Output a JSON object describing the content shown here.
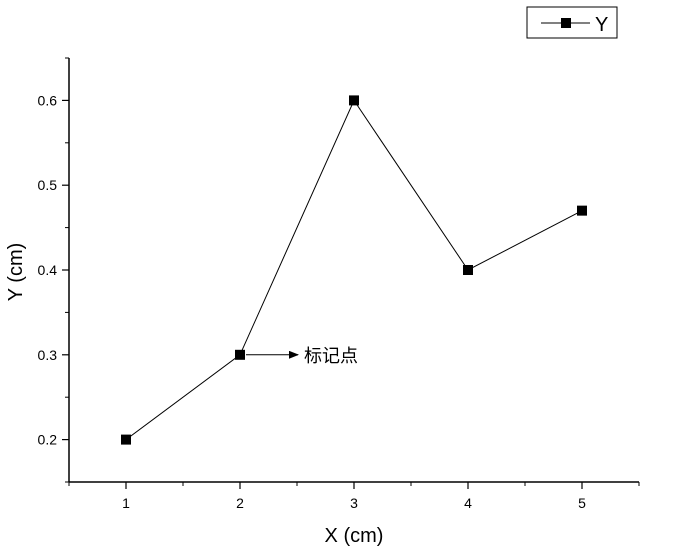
{
  "chart_data": {
    "type": "line",
    "x": [
      1,
      2,
      3,
      4,
      5
    ],
    "series": [
      {
        "name": "Y",
        "values": [
          0.2,
          0.3,
          0.6,
          0.4,
          0.47
        ]
      }
    ],
    "xlabel": "X (cm)",
    "ylabel": "Y (cm)",
    "xlim": [
      0.5,
      5.5
    ],
    "ylim": [
      0.15,
      0.65
    ],
    "x_ticks": [
      1,
      2,
      3,
      4,
      5
    ],
    "x_tick_labels": [
      "1",
      "2",
      "3",
      "4",
      "5"
    ],
    "y_ticks": [
      0.2,
      0.3,
      0.4,
      0.5,
      0.6
    ],
    "y_tick_labels": [
      "0.2",
      "0.3",
      "0.4",
      "0.5",
      "0.6"
    ],
    "grid": false,
    "legend_position": "top-right",
    "marker": "square",
    "line_color": "#000000",
    "annotations": [
      {
        "text": "标记点",
        "x": 2,
        "y": 0.3,
        "arrow": true
      }
    ]
  }
}
